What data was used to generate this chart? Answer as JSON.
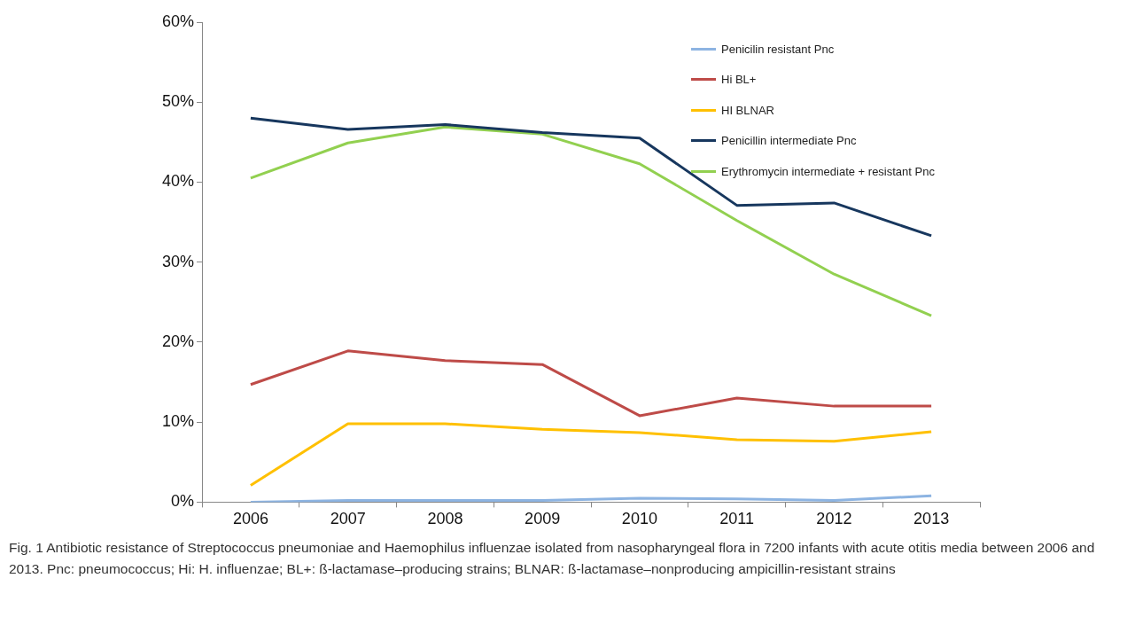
{
  "chart_data": {
    "type": "line",
    "categories": [
      "2006",
      "2007",
      "2008",
      "2009",
      "2010",
      "2011",
      "2012",
      "2013"
    ],
    "series": [
      {
        "name": "Penicilin resistant Pnc",
        "color": "#8db4e2",
        "values": [
          0,
          0.2,
          0.2,
          0.2,
          0.5,
          0.4,
          0.2,
          0.8
        ]
      },
      {
        "name": "Hi BL+",
        "color": "#be4b48",
        "values": [
          14.7,
          18.9,
          17.7,
          17.2,
          10.8,
          13.0,
          12.0,
          12.0
        ]
      },
      {
        "name": "HI BLNAR",
        "color": "#ffc000",
        "values": [
          2.1,
          9.8,
          9.8,
          9.1,
          8.7,
          7.8,
          7.6,
          8.8
        ]
      },
      {
        "name": "Penicillin intermediate Pnc",
        "color": "#17375e",
        "values": [
          48.0,
          46.6,
          47.2,
          46.2,
          45.5,
          37.1,
          37.4,
          33.3
        ]
      },
      {
        "name": "Erythromycin intermediate + resistant Pnc",
        "color": "#92d050",
        "values": [
          40.5,
          44.9,
          46.9,
          46.0,
          42.3,
          35.2,
          28.5,
          23.3
        ]
      }
    ],
    "ylim": [
      0,
      60
    ],
    "yticks": [
      {
        "value": 0,
        "label": "0%"
      },
      {
        "value": 10,
        "label": "10%"
      },
      {
        "value": 20,
        "label": "20%"
      },
      {
        "value": 30,
        "label": "30%"
      },
      {
        "value": 40,
        "label": "40%"
      },
      {
        "value": 50,
        "label": "50%"
      },
      {
        "value": 60,
        "label": "60%"
      }
    ],
    "grid": false,
    "legend": "top right",
    "marker": "none",
    "line_style": "solid",
    "annotations": [
      "Fig. 1 Antibiotic resistance of Streptococcus pneumoniae and Haemophilus influenzae isolated from nasopharyngeal flora in 7200 infants with acute otitis media between 2006 and 2013. Pnc: pneumococcus; Hi: H. influenzae; BL+: ß-lactamase–producing strains; BLNAR: ß-lactamase–nonproducing ampicillin-resistant strains"
    ]
  }
}
